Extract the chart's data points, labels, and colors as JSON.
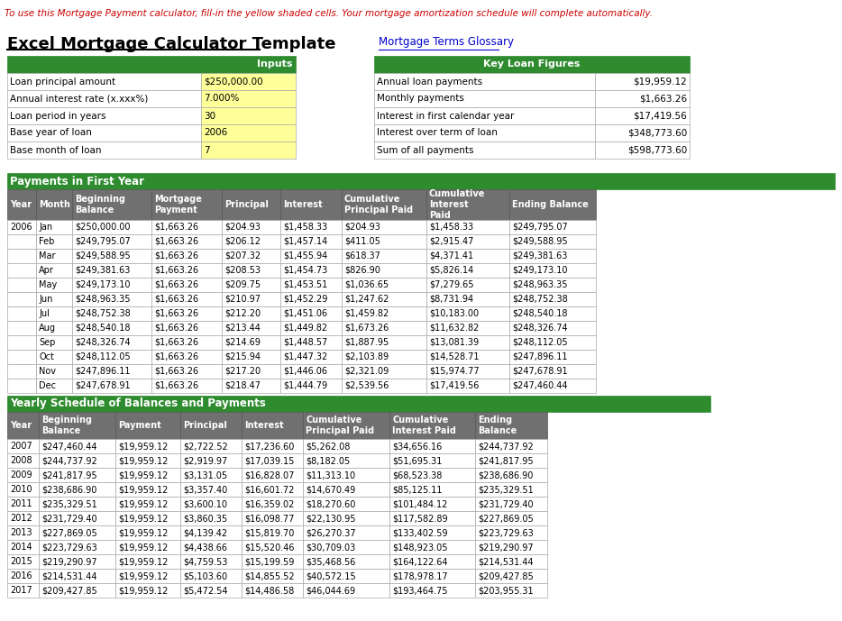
{
  "title": "Excel Mortgage Calculator Template",
  "link_text": "Mortgage Terms Glossary",
  "top_note": "To use this Mortgage Payment calculator, fill-in the yellow shaded cells. Your mortgage amortization schedule will complete automatically.",
  "inputs_header": "Inputs",
  "inputs_rows": [
    [
      "Loan principal amount",
      "$250,000.00"
    ],
    [
      "Annual interest rate (x.xxx%)",
      "7.000%"
    ],
    [
      "Loan period in years",
      "30"
    ],
    [
      "Base year of loan",
      "2006"
    ],
    [
      "Base month of loan",
      "7"
    ]
  ],
  "key_loan_header": "Key Loan Figures",
  "key_loan_rows": [
    [
      "Annual loan payments",
      "$19,959.12"
    ],
    [
      "Monthly payments",
      "$1,663.26"
    ],
    [
      "Interest in first calendar year",
      "$17,419.56"
    ],
    [
      "Interest over term of loan",
      "$348,773.60"
    ],
    [
      "Sum of all payments",
      "$598,773.60"
    ]
  ],
  "first_year_header": "Payments in First Year",
  "first_year_col_headers": [
    "Year",
    "Month",
    "Beginning\nBalance",
    "Mortgage\nPayment",
    "Principal",
    "Interest",
    "Cumulative\nPrincipal Paid",
    "Cumulative\nInterest\nPaid",
    "Ending Balance"
  ],
  "first_year_rows": [
    [
      "2006",
      "Jan",
      "$250,000.00",
      "$1,663.26",
      "$204.93",
      "$1,458.33",
      "$204.93",
      "$1,458.33",
      "$249,795.07"
    ],
    [
      "",
      "Feb",
      "$249,795.07",
      "$1,663.26",
      "$206.12",
      "$1,457.14",
      "$411.05",
      "$2,915.47",
      "$249,588.95"
    ],
    [
      "",
      "Mar",
      "$249,588.95",
      "$1,663.26",
      "$207.32",
      "$1,455.94",
      "$618.37",
      "$4,371.41",
      "$249,381.63"
    ],
    [
      "",
      "Apr",
      "$249,381.63",
      "$1,663.26",
      "$208.53",
      "$1,454.73",
      "$826.90",
      "$5,826.14",
      "$249,173.10"
    ],
    [
      "",
      "May",
      "$249,173.10",
      "$1,663.26",
      "$209.75",
      "$1,453.51",
      "$1,036.65",
      "$7,279.65",
      "$248,963.35"
    ],
    [
      "",
      "Jun",
      "$248,963.35",
      "$1,663.26",
      "$210.97",
      "$1,452.29",
      "$1,247.62",
      "$8,731.94",
      "$248,752.38"
    ],
    [
      "",
      "Jul",
      "$248,752.38",
      "$1,663.26",
      "$212.20",
      "$1,451.06",
      "$1,459.82",
      "$10,183.00",
      "$248,540.18"
    ],
    [
      "",
      "Aug",
      "$248,540.18",
      "$1,663.26",
      "$213.44",
      "$1,449.82",
      "$1,673.26",
      "$11,632.82",
      "$248,326.74"
    ],
    [
      "",
      "Sep",
      "$248,326.74",
      "$1,663.26",
      "$214.69",
      "$1,448.57",
      "$1,887.95",
      "$13,081.39",
      "$248,112.05"
    ],
    [
      "",
      "Oct",
      "$248,112.05",
      "$1,663.26",
      "$215.94",
      "$1,447.32",
      "$2,103.89",
      "$14,528.71",
      "$247,896.11"
    ],
    [
      "",
      "Nov",
      "$247,896.11",
      "$1,663.26",
      "$217.20",
      "$1,446.06",
      "$2,321.09",
      "$15,974.77",
      "$247,678.91"
    ],
    [
      "",
      "Dec",
      "$247,678.91",
      "$1,663.26",
      "$218.47",
      "$1,444.79",
      "$2,539.56",
      "$17,419.56",
      "$247,460.44"
    ]
  ],
  "yearly_header": "Yearly Schedule of Balances and Payments",
  "yearly_col_headers": [
    "Year",
    "Beginning\nBalance",
    "Payment",
    "Principal",
    "Interest",
    "Cumulative\nPrincipal Paid",
    "Cumulative\nInterest Paid",
    "Ending\nBalance"
  ],
  "yearly_rows": [
    [
      "2007",
      "$247,460.44",
      "$19,959.12",
      "$2,722.52",
      "$17,236.60",
      "$5,262.08",
      "$34,656.16",
      "$244,737.92"
    ],
    [
      "2008",
      "$244,737.92",
      "$19,959.12",
      "$2,919.97",
      "$17,039.15",
      "$8,182.05",
      "$51,695.31",
      "$241,817.95"
    ],
    [
      "2009",
      "$241,817.95",
      "$19,959.12",
      "$3,131.05",
      "$16,828.07",
      "$11,313.10",
      "$68,523.38",
      "$238,686.90"
    ],
    [
      "2010",
      "$238,686.90",
      "$19,959.12",
      "$3,357.40",
      "$16,601.72",
      "$14,670.49",
      "$85,125.11",
      "$235,329.51"
    ],
    [
      "2011",
      "$235,329.51",
      "$19,959.12",
      "$3,600.10",
      "$16,359.02",
      "$18,270.60",
      "$101,484.12",
      "$231,729.40"
    ],
    [
      "2012",
      "$231,729.40",
      "$19,959.12",
      "$3,860.35",
      "$16,098.77",
      "$22,130.95",
      "$117,582.89",
      "$227,869.05"
    ],
    [
      "2013",
      "$227,869.05",
      "$19,959.12",
      "$4,139.42",
      "$15,819.70",
      "$26,270.37",
      "$133,402.59",
      "$223,729.63"
    ],
    [
      "2014",
      "$223,729.63",
      "$19,959.12",
      "$4,438.66",
      "$15,520.46",
      "$30,709.03",
      "$148,923.05",
      "$219,290.97"
    ],
    [
      "2015",
      "$219,290.97",
      "$19,959.12",
      "$4,759.53",
      "$15,199.59",
      "$35,468.56",
      "$164,122.64",
      "$214,531.44"
    ],
    [
      "2016",
      "$214,531.44",
      "$19,959.12",
      "$5,103.60",
      "$14,855.52",
      "$40,572.15",
      "$178,978.17",
      "$209,427.85"
    ],
    [
      "2017",
      "$209,427.85",
      "$19,959.12",
      "$5,472.54",
      "$14,486.58",
      "$46,044.69",
      "$193,464.75",
      "$203,955.31"
    ]
  ],
  "color_green": "#2E8B2E",
  "color_gray_header": "#707070",
  "color_yellow": "#FFFF99",
  "color_white": "#FFFFFF",
  "color_red_text": "#CC0000",
  "color_blue_link": "#0000CC",
  "color_black": "#000000",
  "color_border": "#AAAAAA"
}
